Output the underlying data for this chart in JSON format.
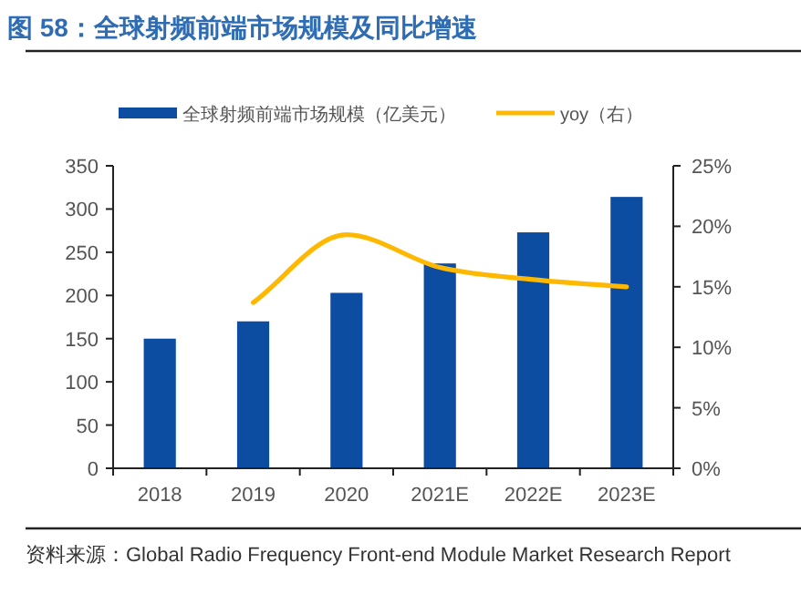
{
  "chart_data": {
    "type": "bar",
    "title": "图 58：全球射频前端市场规模及同比增速",
    "categories": [
      "2018",
      "2019",
      "2020",
      "2021E",
      "2022E",
      "2023E"
    ],
    "series": [
      {
        "name": "全球射频前端市场规模（亿美元）",
        "color": "#0c4da2",
        "values": [
          150,
          170,
          203,
          237,
          273,
          314
        ]
      },
      {
        "name": "yoy（右）",
        "type": "line",
        "axis": "y2",
        "color": "#ffb800",
        "values": [
          null,
          13.7,
          19.3,
          16.6,
          15.6,
          15.0
        ]
      }
    ],
    "ylim": [
      0,
      350
    ],
    "yticks": [
      0,
      50,
      100,
      150,
      200,
      250,
      300,
      350
    ],
    "y2lim": [
      0,
      25
    ],
    "y2ticks": [
      {
        "value": 0,
        "label": "0%"
      },
      {
        "value": 5,
        "label": "5%"
      },
      {
        "value": 10,
        "label": "10%"
      },
      {
        "value": 15,
        "label": "15%"
      },
      {
        "value": 20,
        "label": "20%"
      },
      {
        "value": 25,
        "label": "25%"
      }
    ],
    "grid": false,
    "legend": "top",
    "marker": "none",
    "annotations": [
      "资料来源：Global Radio Frequency Front-end Module Market Research Report"
    ]
  }
}
